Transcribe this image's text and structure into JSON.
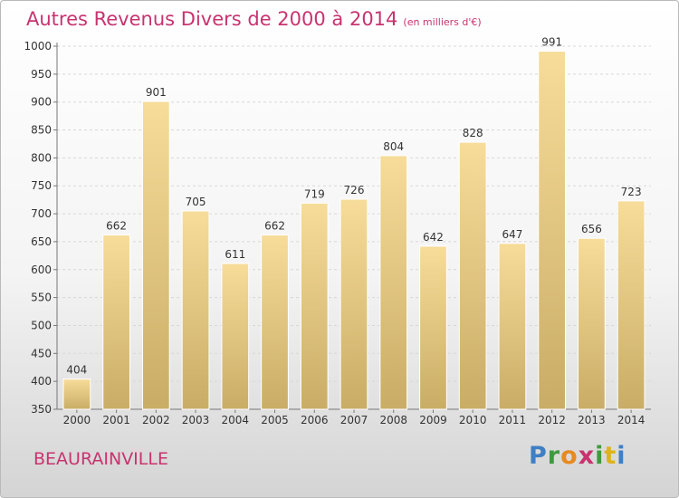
{
  "header": {
    "title": "Autres Revenus Divers de 2000 à 2014",
    "unit": "(en milliers d'€)"
  },
  "footer": {
    "town": "BEAURAINVILLE",
    "brand": [
      "P",
      "r",
      "o",
      "x",
      "i",
      "t",
      "i"
    ]
  },
  "colors": {
    "title": "#c8336f",
    "bar_top": "#f7dc9a",
    "bar_bottom": "#c9ad66",
    "grid": "#d7d7d7"
  },
  "chart_data": {
    "type": "bar",
    "title": "Autres Revenus Divers de 2000 à 2014",
    "subtitle": "(en milliers d'€)",
    "xlabel": "",
    "ylabel": "",
    "categories": [
      "2000",
      "2001",
      "2002",
      "2003",
      "2004",
      "2005",
      "2006",
      "2007",
      "2008",
      "2009",
      "2010",
      "2011",
      "2012",
      "2013",
      "2014"
    ],
    "values": [
      404,
      662,
      901,
      705,
      611,
      662,
      719,
      726,
      804,
      642,
      828,
      647,
      991,
      656,
      723
    ],
    "ylim": [
      350,
      1000
    ],
    "yticks": [
      350,
      400,
      450,
      500,
      550,
      600,
      650,
      700,
      750,
      800,
      850,
      900,
      950,
      1000
    ],
    "grid": "dashed horizontal",
    "legend": "none",
    "data_labels": true
  }
}
